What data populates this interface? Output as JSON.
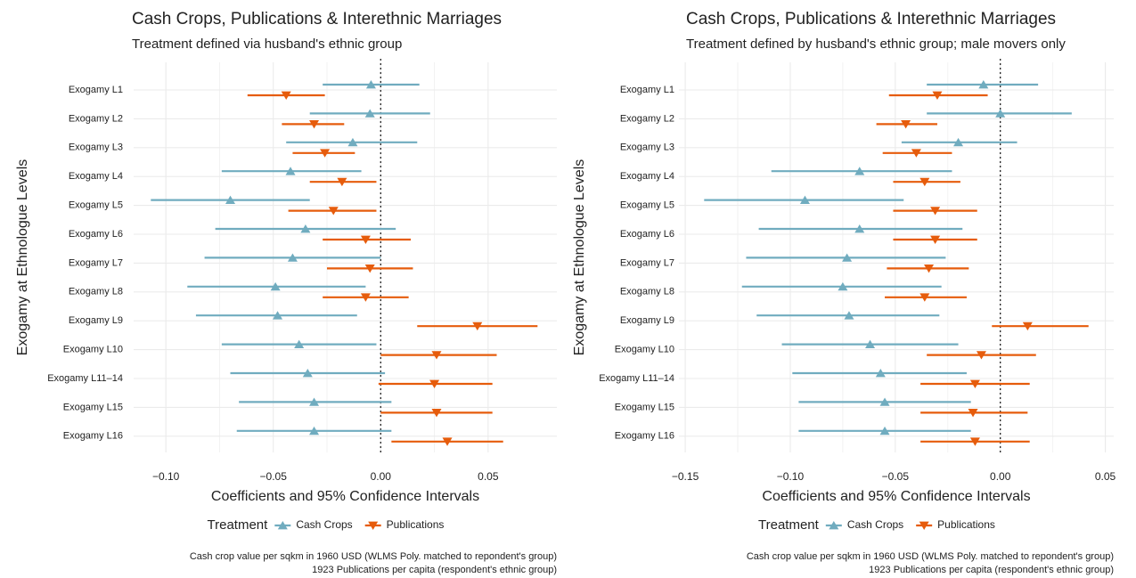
{
  "chart_data": [
    {
      "type": "coefplot",
      "title": "Cash Crops, Publications & Interethnic Marriages",
      "subtitle": "Treatment defined via husband's ethnic group",
      "xlabel": "Coefficients and 95% Confidence Intervals",
      "ylabel": "Exogamy at Ethnologue Levels",
      "legend_title": "Treatment",
      "caption": [
        "Cash crop value per sqkm in 1960 USD (WLMS Poly. matched to repondent's group)",
        "1923 Publications per capita (respondent's ethnic group)"
      ],
      "categories": [
        "Exogamy L1",
        "Exogamy L2",
        "Exogamy L3",
        "Exogamy L4",
        "Exogamy L5",
        "Exogamy L6",
        "Exogamy L7",
        "Exogamy L8",
        "Exogamy L9",
        "Exogamy L10",
        "Exogamy L11–14",
        "Exogamy L15",
        "Exogamy L16"
      ],
      "series": [
        {
          "name": "Cash Crops",
          "color": "#70acbf",
          "marker": "up",
          "values": [
            -0.0045,
            -0.005,
            -0.013,
            -0.042,
            -0.07,
            -0.035,
            -0.041,
            -0.049,
            -0.048,
            -0.038,
            -0.034,
            -0.031,
            -0.031
          ],
          "lower": [
            -0.027,
            -0.033,
            -0.044,
            -0.074,
            -0.107,
            -0.077,
            -0.082,
            -0.09,
            -0.086,
            -0.074,
            -0.07,
            -0.066,
            -0.067
          ],
          "upper": [
            0.018,
            0.023,
            0.017,
            -0.009,
            -0.033,
            0.007,
            0.0,
            -0.007,
            -0.011,
            -0.002,
            0.002,
            0.005,
            0.005
          ]
        },
        {
          "name": "Publications",
          "color": "#e65c0c",
          "marker": "down",
          "values": [
            -0.044,
            -0.031,
            -0.026,
            -0.018,
            -0.022,
            -0.007,
            -0.005,
            -0.007,
            0.045,
            0.026,
            0.025,
            0.026,
            0.031
          ],
          "lower": [
            -0.062,
            -0.046,
            -0.041,
            -0.033,
            -0.043,
            -0.027,
            -0.025,
            -0.027,
            0.017,
            0.0,
            -0.001,
            0.0,
            0.005
          ],
          "upper": [
            -0.026,
            -0.017,
            -0.012,
            -0.002,
            -0.002,
            0.014,
            0.015,
            0.013,
            0.073,
            0.054,
            0.052,
            0.052,
            0.057
          ]
        }
      ],
      "xlim": [
        -0.115,
        0.082
      ],
      "xticks": [
        {
          "value": -0.1,
          "label": "−0.10"
        },
        {
          "value": -0.05,
          "label": "−0.05"
        },
        {
          "value": 0,
          "label": "0.00"
        },
        {
          "value": 0.05,
          "label": "0.05"
        }
      ],
      "refline": 0,
      "grid": true,
      "legend": "bottom"
    },
    {
      "type": "coefplot",
      "title": "Cash Crops, Publications & Interethnic Marriages",
      "subtitle": "Treatment defined by husband's ethnic group; male movers only",
      "xlabel": "Coefficients and 95% Confidence Intervals",
      "ylabel": "Exogamy at Ethnologue Levels",
      "legend_title": "Treatment",
      "caption": [
        "Cash crop value per sqkm in 1960 USD (WLMS Poly. matched to repondent's group)",
        "1923 Publications per capita (respondent's ethnic group)"
      ],
      "categories": [
        "Exogamy L1",
        "Exogamy L2",
        "Exogamy L3",
        "Exogamy L4",
        "Exogamy L5",
        "Exogamy L6",
        "Exogamy L7",
        "Exogamy L8",
        "Exogamy L9",
        "Exogamy L10",
        "Exogamy L11–14",
        "Exogamy L15",
        "Exogamy L16"
      ],
      "series": [
        {
          "name": "Cash Crops",
          "color": "#70acbf",
          "marker": "up",
          "values": [
            -0.008,
            0.0,
            -0.02,
            -0.067,
            -0.093,
            -0.067,
            -0.073,
            -0.075,
            -0.072,
            -0.062,
            -0.057,
            -0.055,
            -0.055
          ],
          "lower": [
            -0.035,
            -0.035,
            -0.047,
            -0.109,
            -0.141,
            -0.115,
            -0.121,
            -0.123,
            -0.116,
            -0.104,
            -0.099,
            -0.096,
            -0.096
          ],
          "upper": [
            0.018,
            0.034,
            0.008,
            -0.023,
            -0.046,
            -0.018,
            -0.026,
            -0.028,
            -0.029,
            -0.02,
            -0.016,
            -0.014,
            -0.014
          ]
        },
        {
          "name": "Publications",
          "color": "#e65c0c",
          "marker": "down",
          "values": [
            -0.03,
            -0.045,
            -0.04,
            -0.036,
            -0.031,
            -0.031,
            -0.034,
            -0.036,
            0.013,
            -0.009,
            -0.012,
            -0.013,
            -0.012
          ],
          "lower": [
            -0.053,
            -0.059,
            -0.056,
            -0.051,
            -0.051,
            -0.051,
            -0.054,
            -0.055,
            -0.004,
            -0.035,
            -0.038,
            -0.038,
            -0.038
          ],
          "upper": [
            -0.006,
            -0.03,
            -0.023,
            -0.019,
            -0.011,
            -0.011,
            -0.015,
            -0.016,
            0.042,
            0.017,
            0.014,
            0.013,
            0.014
          ]
        }
      ],
      "xlim": [
        -0.153,
        0.054
      ],
      "xticks": [
        {
          "value": -0.15,
          "label": "−0.15"
        },
        {
          "value": -0.1,
          "label": "−0.10"
        },
        {
          "value": -0.05,
          "label": "−0.05"
        },
        {
          "value": 0,
          "label": "0.00"
        },
        {
          "value": 0.05,
          "label": "0.05"
        }
      ],
      "refline": 0,
      "grid": true,
      "legend": "bottom"
    }
  ]
}
